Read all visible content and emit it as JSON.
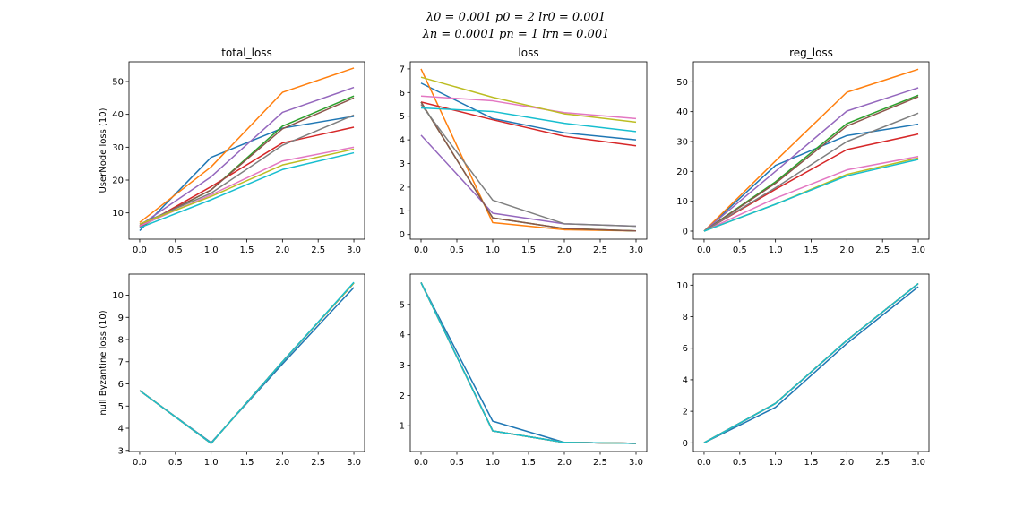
{
  "suptitle": {
    "line1": "λ0 = 0.001  p0 = 2  lr0 = 0.001",
    "line2": "λn = 0.0001  pn = 1  lrn = 0.001"
  },
  "palette": [
    "#1f77b4",
    "#ff7f0e",
    "#2ca02c",
    "#d62728",
    "#9467bd",
    "#8c564b",
    "#e377c2",
    "#7f7f7f",
    "#bcbd22",
    "#17becf"
  ],
  "chart_data": [
    {
      "type": "line",
      "title": "total_loss",
      "ylabel": "UserNode loss (10)",
      "x": [
        0,
        1,
        2,
        3
      ],
      "xticks": [
        "0.0",
        "0.5",
        "1.0",
        "1.5",
        "2.0",
        "2.5",
        "3.0"
      ],
      "yticks": [
        10,
        20,
        30,
        40,
        50
      ],
      "ylim": [
        2,
        56
      ],
      "series": [
        {
          "values": [
            4.6,
            26.9,
            35.8,
            39.4
          ]
        },
        {
          "values": [
            7.1,
            24.0,
            46.7,
            54.1
          ]
        },
        {
          "values": [
            5.7,
            17.0,
            36.4,
            45.6
          ]
        },
        {
          "values": [
            5.7,
            18.0,
            31.3,
            36.1
          ]
        },
        {
          "values": [
            6.2,
            21.0,
            40.6,
            48.2
          ]
        },
        {
          "values": [
            6.0,
            17.0,
            35.6,
            45.0
          ]
        },
        {
          "values": [
            6.0,
            15.5,
            25.8,
            30.0
          ]
        },
        {
          "values": [
            6.6,
            16.0,
            30.6,
            39.8
          ]
        },
        {
          "values": [
            6.6,
            15.0,
            24.6,
            29.4
          ]
        },
        {
          "values": [
            5.5,
            14.0,
            23.2,
            28.3
          ]
        }
      ]
    },
    {
      "type": "line",
      "title": "loss",
      "ylabel": "",
      "x": [
        0,
        1,
        2,
        3
      ],
      "xticks": [
        "0.0",
        "0.5",
        "1.0",
        "1.5",
        "2.0",
        "2.5",
        "3.0"
      ],
      "yticks": [
        0,
        1,
        2,
        3,
        4,
        5,
        6,
        7
      ],
      "ylim": [
        -0.2,
        7.3
      ],
      "series": [
        {
          "values": [
            6.4,
            4.9,
            4.3,
            4.0
          ]
        },
        {
          "values": [
            7.0,
            0.5,
            0.2,
            0.15
          ]
        },
        {
          "values": [
            5.6,
            0.7,
            0.25,
            0.15
          ]
        },
        {
          "values": [
            5.6,
            4.85,
            4.15,
            3.75
          ]
        },
        {
          "values": [
            4.2,
            0.9,
            0.45,
            0.35
          ]
        },
        {
          "values": [
            5.6,
            0.7,
            0.25,
            0.15
          ]
        },
        {
          "values": [
            5.85,
            5.65,
            5.15,
            4.9
          ]
        },
        {
          "values": [
            5.5,
            1.45,
            0.45,
            0.35
          ]
        },
        {
          "values": [
            6.65,
            5.8,
            5.1,
            4.75
          ]
        },
        {
          "values": [
            5.35,
            5.2,
            4.7,
            4.35
          ]
        }
      ]
    },
    {
      "type": "line",
      "title": "reg_loss",
      "ylabel": "",
      "x": [
        0,
        1,
        2,
        3
      ],
      "xticks": [
        "0.0",
        "0.5",
        "1.0",
        "1.5",
        "2.0",
        "2.5",
        "3.0"
      ],
      "yticks": [
        0,
        10,
        20,
        30,
        40,
        50
      ],
      "ylim": [
        -2.7,
        56.7
      ],
      "series": [
        {
          "values": [
            0,
            22.0,
            32.0,
            35.8
          ]
        },
        {
          "values": [
            0,
            23.5,
            46.5,
            54.2
          ]
        },
        {
          "values": [
            0,
            16.5,
            36.0,
            45.5
          ]
        },
        {
          "values": [
            0,
            14.0,
            27.3,
            32.5
          ]
        },
        {
          "values": [
            0,
            20.0,
            40.2,
            48.0
          ]
        },
        {
          "values": [
            0,
            16.0,
            35.2,
            45.0
          ]
        },
        {
          "values": [
            0,
            11.0,
            20.5,
            25.0
          ]
        },
        {
          "values": [
            0,
            14.5,
            30.0,
            39.5
          ]
        },
        {
          "values": [
            0,
            9.0,
            19.0,
            24.5
          ]
        },
        {
          "values": [
            0,
            9.0,
            18.5,
            24.0
          ]
        }
      ]
    },
    {
      "type": "line",
      "title": "",
      "ylabel": "null Byzantine loss (10)",
      "x": [
        0,
        1,
        2,
        3
      ],
      "xticks": [
        "0.0",
        "0.5",
        "1.0",
        "1.5",
        "2.0",
        "2.5",
        "3.0"
      ],
      "yticks": [
        3,
        4,
        5,
        6,
        7,
        8,
        9,
        10
      ],
      "ylim": [
        2.95,
        10.95
      ],
      "series": [
        {
          "values": [
            5.7,
            3.35,
            6.9,
            10.35
          ]
        },
        {
          "values": [
            5.7,
            3.32,
            7.0,
            10.55
          ]
        },
        {
          "values": [
            5.7,
            3.32,
            7.0,
            10.55
          ]
        },
        {
          "values": [
            5.7,
            3.32,
            7.0,
            10.55
          ]
        },
        {
          "values": [
            5.7,
            3.32,
            7.0,
            10.55
          ]
        },
        {
          "values": [
            5.7,
            3.32,
            7.0,
            10.55
          ]
        },
        {
          "values": [
            5.7,
            3.32,
            7.0,
            10.55
          ]
        },
        {
          "values": [
            5.7,
            3.32,
            7.0,
            10.55
          ]
        },
        {
          "values": [
            5.7,
            3.32,
            7.0,
            10.55
          ]
        },
        {
          "values": [
            5.7,
            3.32,
            7.0,
            10.58
          ]
        }
      ]
    },
    {
      "type": "line",
      "title": "",
      "ylabel": "",
      "x": [
        0,
        1,
        2,
        3
      ],
      "xticks": [
        "0.0",
        "0.5",
        "1.0",
        "1.5",
        "2.0",
        "2.5",
        "3.0"
      ],
      "yticks": [
        1,
        2,
        3,
        4,
        5
      ],
      "ylim": [
        0.15,
        6.0
      ],
      "series": [
        {
          "values": [
            5.72,
            1.15,
            0.45,
            0.42
          ]
        },
        {
          "values": [
            5.72,
            0.83,
            0.45,
            0.42
          ]
        },
        {
          "values": [
            5.72,
            0.83,
            0.45,
            0.42
          ]
        },
        {
          "values": [
            5.72,
            0.83,
            0.45,
            0.42
          ]
        },
        {
          "values": [
            5.72,
            0.83,
            0.45,
            0.42
          ]
        },
        {
          "values": [
            5.72,
            0.83,
            0.45,
            0.42
          ]
        },
        {
          "values": [
            5.72,
            0.83,
            0.45,
            0.42
          ]
        },
        {
          "values": [
            5.72,
            0.83,
            0.45,
            0.42
          ]
        },
        {
          "values": [
            5.72,
            0.83,
            0.45,
            0.42
          ]
        },
        {
          "values": [
            5.72,
            0.83,
            0.45,
            0.42
          ]
        }
      ]
    },
    {
      "type": "line",
      "title": "",
      "ylabel": "",
      "x": [
        0,
        1,
        2,
        3
      ],
      "xticks": [
        "0.0",
        "0.5",
        "1.0",
        "1.5",
        "2.0",
        "2.5",
        "3.0"
      ],
      "yticks": [
        0,
        2,
        4,
        6,
        8,
        10
      ],
      "ylim": [
        -0.55,
        10.7
      ],
      "series": [
        {
          "values": [
            0,
            2.25,
            6.3,
            9.9
          ]
        },
        {
          "values": [
            0,
            2.5,
            6.5,
            10.1
          ]
        },
        {
          "values": [
            0,
            2.5,
            6.5,
            10.1
          ]
        },
        {
          "values": [
            0,
            2.5,
            6.5,
            10.1
          ]
        },
        {
          "values": [
            0,
            2.5,
            6.5,
            10.1
          ]
        },
        {
          "values": [
            0,
            2.5,
            6.5,
            10.1
          ]
        },
        {
          "values": [
            0,
            2.5,
            6.5,
            10.1
          ]
        },
        {
          "values": [
            0,
            2.5,
            6.5,
            10.1
          ]
        },
        {
          "values": [
            0,
            2.5,
            6.5,
            10.1
          ]
        },
        {
          "values": [
            0,
            2.5,
            6.5,
            10.1
          ]
        }
      ]
    }
  ]
}
